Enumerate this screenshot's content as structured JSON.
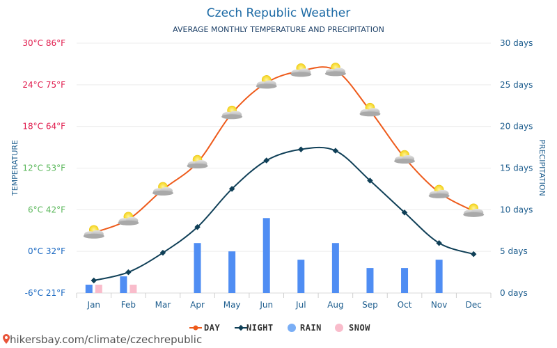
{
  "title": "Czech Republic Weather",
  "subtitle": "AVERAGE MONTHLY TEMPERATURE AND PRECIPITATION",
  "footer": "hikersbay.com/climate/czechrepublic",
  "colors": {
    "day": "#ee5a1a",
    "night": "#0f3f57",
    "rain": "#4f8df3",
    "snow": "#f9bccb",
    "title": "#1c6aa5",
    "left_axis": "#e0194b",
    "right_axis": "#1d5d8e"
  },
  "chart_data": {
    "type": "line",
    "title": "Czech Republic Weather",
    "subtitle": "AVERAGE MONTHLY TEMPERATURE AND PRECIPITATION",
    "categories": [
      "Jan",
      "Feb",
      "Mar",
      "Apr",
      "May",
      "Jun",
      "Jul",
      "Aug",
      "Sep",
      "Oct",
      "Nov",
      "Dec"
    ],
    "y_left": {
      "label": "TEMPERATURE",
      "range": [
        -6,
        30
      ],
      "ticks": [
        "-6°C 21°F",
        "0°C 32°F",
        "6°C 42°F",
        "12°C 53°F",
        "18°C 64°F",
        "24°C 75°F",
        "30°C 86°F"
      ],
      "tick_colors": [
        "#1565c0",
        "#1565c0",
        "#5cb85c",
        "#5cb85c",
        "#e0194b",
        "#e0194b",
        "#e0194b"
      ]
    },
    "y_right": {
      "label": "PRECIPITATION",
      "range": [
        0,
        30
      ],
      "ticks": [
        "0 days",
        "5 days",
        "10 days",
        "15 days",
        "20 days",
        "25 days",
        "30 days"
      ]
    },
    "series": [
      {
        "name": "DAY",
        "type": "line",
        "values": [
          2.7,
          4.6,
          8.9,
          12.8,
          19.9,
          24.3,
          26.0,
          26.1,
          20.3,
          13.5,
          8.5,
          5.8
        ]
      },
      {
        "name": "NIGHT",
        "type": "line",
        "values": [
          -4.2,
          -3.0,
          -0.2,
          3.5,
          9.0,
          13.1,
          14.7,
          14.5,
          10.2,
          5.6,
          1.2,
          -0.4
        ]
      },
      {
        "name": "RAIN",
        "type": "bar",
        "values": [
          1,
          2,
          0,
          6,
          5,
          9,
          4,
          6,
          3,
          3,
          4,
          0
        ]
      },
      {
        "name": "SNOW",
        "type": "bar",
        "values": [
          1,
          1,
          0,
          0,
          0,
          0,
          0,
          0,
          0,
          0,
          0,
          0
        ]
      }
    ],
    "grid": true,
    "legend_position": "bottom"
  }
}
